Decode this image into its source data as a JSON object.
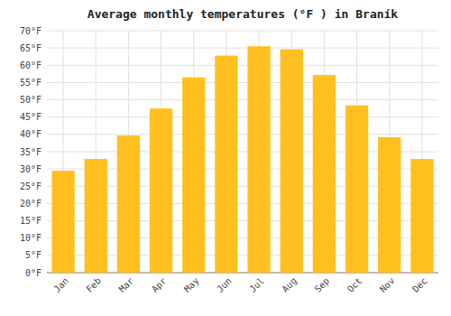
{
  "chart_data": {
    "type": "bar",
    "title": "Average monthly temperatures (°F ) in Braník",
    "categories": [
      "Jan",
      "Feb",
      "Mar",
      "Apr",
      "May",
      "Jun",
      "Jul",
      "Aug",
      "Sep",
      "Oct",
      "Nov",
      "Dec"
    ],
    "values": [
      29.5,
      32.9,
      39.7,
      47.5,
      56.5,
      62.8,
      65.5,
      64.6,
      57.2,
      48.4,
      39.2,
      32.9
    ],
    "color": "#FFC020",
    "ylim": [
      0,
      70
    ],
    "yticks": [
      {
        "value": 0,
        "label": "0°F"
      },
      {
        "value": 5,
        "label": "5°F"
      },
      {
        "value": 10,
        "label": "10°F"
      },
      {
        "value": 15,
        "label": "15°F"
      },
      {
        "value": 20,
        "label": "20°F"
      },
      {
        "value": 25,
        "label": "25°F"
      },
      {
        "value": 30,
        "label": "30°F"
      },
      {
        "value": 35,
        "label": "35°F"
      },
      {
        "value": 40,
        "label": "40°F"
      },
      {
        "value": 45,
        "label": "45°F"
      },
      {
        "value": 50,
        "label": "50°F"
      },
      {
        "value": 55,
        "label": "55°F"
      },
      {
        "value": 60,
        "label": "60°F"
      },
      {
        "value": 65,
        "label": "65°F"
      },
      {
        "value": 70,
        "label": "70°F"
      }
    ],
    "grid": true
  }
}
